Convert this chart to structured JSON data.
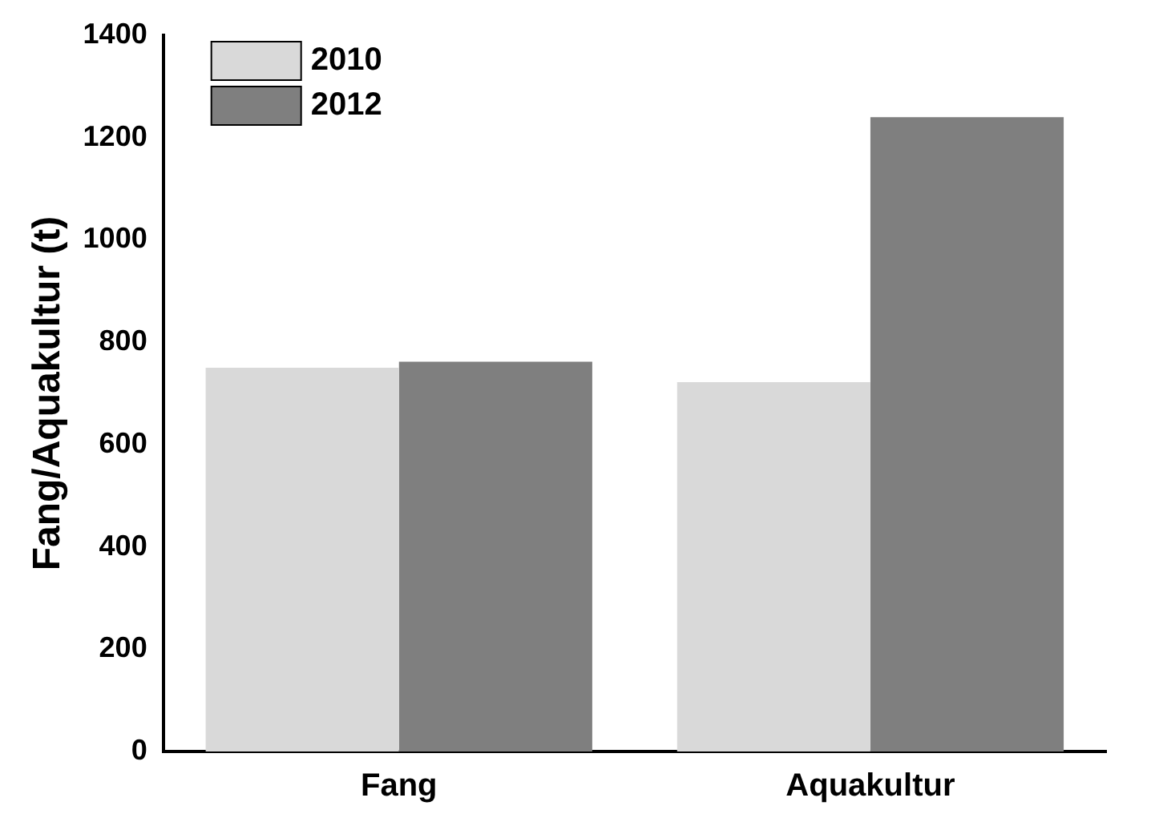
{
  "chart_data": {
    "type": "bar",
    "ylabel": "Fang/Aquakultur (t)",
    "categories": [
      "Fang",
      "Aquakultur"
    ],
    "series": [
      {
        "name": "2010",
        "color": "#d9d9d9",
        "values": [
          750,
          722
        ]
      },
      {
        "name": "2012",
        "color": "#7f7f7f",
        "values": [
          762,
          1240
        ]
      }
    ],
    "ylim": [
      0,
      1400
    ],
    "yticks": [
      0,
      200,
      400,
      600,
      800,
      1000,
      1200,
      1400
    ],
    "legend": "top left"
  }
}
